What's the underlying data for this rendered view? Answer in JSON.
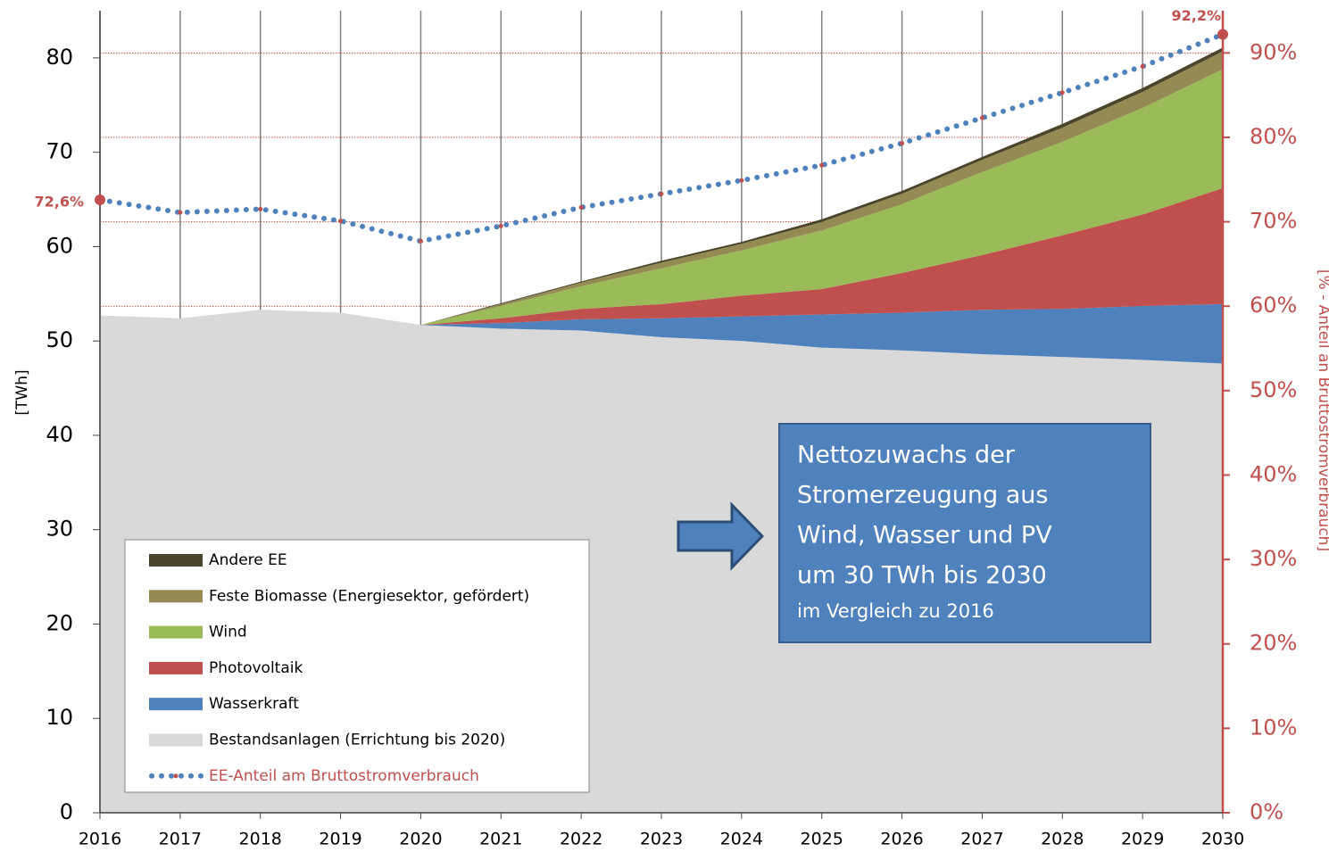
{
  "chart_data": {
    "type": "stacked_area",
    "categories": [
      "2016",
      "2017",
      "2018",
      "2019",
      "2020",
      "2021",
      "2022",
      "2023",
      "2024",
      "2025",
      "2026",
      "2027",
      "2028",
      "2029",
      "2030"
    ],
    "ylim": [
      0,
      85
    ],
    "yticks": [
      0,
      10,
      20,
      30,
      40,
      50,
      60,
      70,
      80
    ],
    "y2lim": [
      0,
      95
    ],
    "y2ticks": [
      {
        "value": 0,
        "label": "0%"
      },
      {
        "value": 10,
        "label": "10%"
      },
      {
        "value": 20,
        "label": "20%"
      },
      {
        "value": 30,
        "label": "30%"
      },
      {
        "value": 40,
        "label": "40%"
      },
      {
        "value": 50,
        "label": "50%"
      },
      {
        "value": 60,
        "label": "60%"
      },
      {
        "value": 70,
        "label": "70%"
      },
      {
        "value": 80,
        "label": "80%"
      },
      {
        "value": 90,
        "label": "90%"
      }
    ],
    "ylabel": "[TWh]",
    "y2label": "[% - Anteil an Bruttostromverbrauch]",
    "series": [
      {
        "name": "Bestandsanlagen (Errichtung bis 2020)",
        "color": "#d9d9d9",
        "values": [
          52.7,
          52.4,
          53.3,
          53.0,
          51.7,
          51.3,
          51.1,
          50.4,
          50.0,
          49.3,
          49.0,
          48.6,
          48.3,
          48.0,
          47.6
        ]
      },
      {
        "name": "Wasserkraft",
        "color": "#4f81bd",
        "values": [
          0,
          0,
          0,
          0,
          0,
          0.6,
          1.2,
          2.0,
          2.6,
          3.5,
          4.0,
          4.7,
          5.1,
          5.7,
          6.3
        ]
      },
      {
        "name": "Photovoltaik",
        "color": "#c0504d",
        "values": [
          0,
          0,
          0,
          0,
          0,
          0.5,
          1.1,
          1.5,
          2.2,
          2.7,
          4.2,
          5.8,
          7.8,
          9.7,
          12.3
        ]
      },
      {
        "name": "Wind",
        "color": "#9bbb59",
        "values": [
          0,
          0,
          0,
          0,
          0,
          1.3,
          2.4,
          3.8,
          4.8,
          6.2,
          7.3,
          8.8,
          9.9,
          11.3,
          12.6
        ]
      },
      {
        "name": "Feste Biomasse (Energiesektor, gefördert)",
        "color": "#948a54",
        "values": [
          0,
          0,
          0,
          0,
          0,
          0.2,
          0.4,
          0.6,
          0.7,
          0.9,
          1.1,
          1.3,
          1.5,
          1.7,
          1.9
        ]
      },
      {
        "name": "Andere EE",
        "color": "#4a452a",
        "values": [
          0,
          0,
          0,
          0,
          0,
          0.1,
          0.1,
          0.2,
          0.2,
          0.3,
          0.3,
          0.3,
          0.4,
          0.4,
          0.4
        ]
      },
      {
        "name": "EE-Anteil am Bruttostromverbrauch",
        "type": "line",
        "axis": "y2",
        "color": "#4f81bd",
        "marker_color": "#c0504d",
        "values": [
          72.6,
          71.1,
          71.5,
          70.1,
          67.7,
          69.5,
          71.7,
          73.3,
          74.9,
          76.7,
          79.3,
          82.3,
          85.3,
          88.4,
          92.2
        ],
        "value_labels": [
          "72,6%",
          null,
          null,
          null,
          null,
          null,
          null,
          null,
          null,
          null,
          null,
          null,
          null,
          null,
          "92,2%"
        ]
      }
    ],
    "annotation": {
      "lines": [
        "Nettozuwachs der",
        "Stromerzeugung aus",
        "Wind, Wasser und PV",
        "um 30 TWh bis 2030",
        "im Vergleich zu 2016"
      ]
    }
  }
}
